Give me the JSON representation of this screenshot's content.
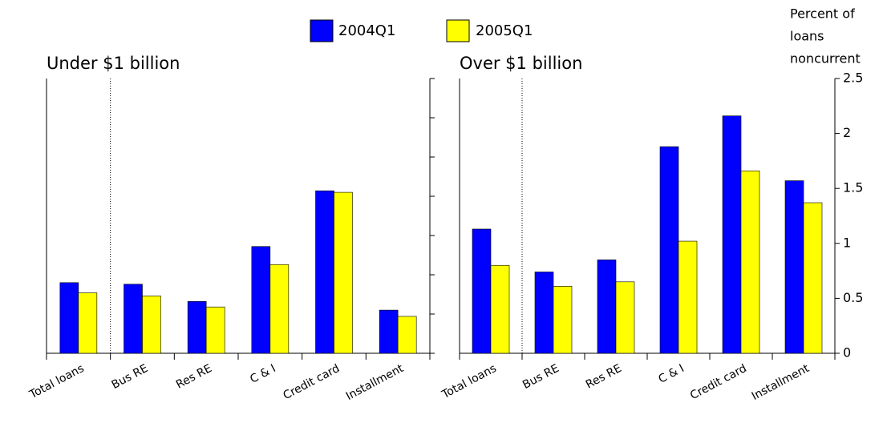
{
  "chart_data": {
    "type": "bar",
    "categories": [
      "Total loans",
      "Bus RE",
      "Res RE",
      "C & I",
      "Credit card",
      "Installment"
    ],
    "legend": [
      {
        "name": "2004Q1",
        "color": "#0000ff"
      },
      {
        "name": "2005Q1",
        "color": "#ffff00"
      }
    ],
    "y_axis_label": [
      "Percent of",
      "loans",
      "noncurrent"
    ],
    "panels": [
      {
        "title": "Under $1 billion",
        "ylim": [
          0,
          3.5
        ],
        "yticks": [
          0,
          0.5,
          1,
          1.5,
          2,
          2.5,
          3,
          3.5
        ],
        "tick_labels": false,
        "series": [
          {
            "values": [
              0.9,
              0.88,
              0.66,
              1.36,
              2.07,
              0.55
            ]
          },
          {
            "values": [
              0.77,
              0.73,
              0.59,
              1.13,
              2.05,
              0.47
            ]
          }
        ]
      },
      {
        "title": "Over $1 billion",
        "ylim": [
          0,
          2.5
        ],
        "yticks": [
          0,
          0.5,
          1,
          1.5,
          2,
          2.5
        ],
        "tick_labels": true,
        "series": [
          {
            "values": [
              1.13,
              0.74,
              0.85,
              1.88,
              2.16,
              1.57
            ]
          },
          {
            "values": [
              0.8,
              0.61,
              0.65,
              1.02,
              1.66,
              1.37
            ]
          }
        ]
      }
    ]
  }
}
